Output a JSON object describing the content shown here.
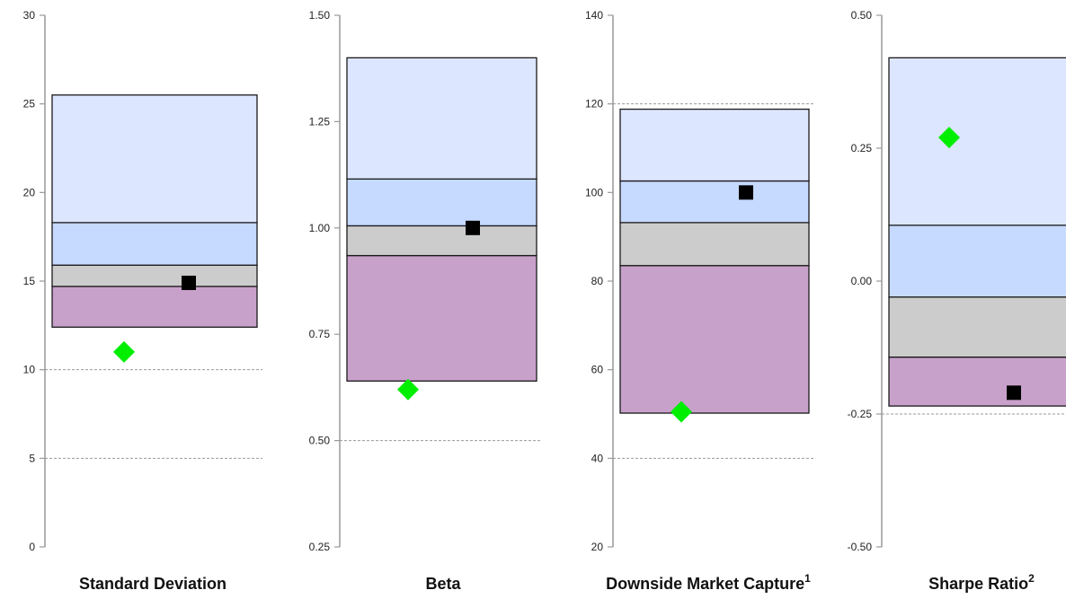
{
  "colors": {
    "band_top": "#dce6ff",
    "band_upper": "#c6d9ff",
    "band_lower": "#cccccc",
    "band_bottom": "#c8a1ca",
    "band_stroke": "#1a1a1a",
    "axis": "#999999",
    "gridline": "#999999",
    "square_marker": "#000000",
    "diamond_marker": "#00ee00"
  },
  "chart_data": [
    {
      "type": "floating-bar",
      "title": "Standard Deviation",
      "title_superscript": "",
      "ylim": [
        0,
        30
      ],
      "yticks": [
        0,
        5,
        10,
        15,
        20,
        25,
        30
      ],
      "ytick_labels": [
        "0",
        "5",
        "10",
        "15",
        "20",
        "25",
        "30"
      ],
      "dashed_gridlines": [
        5,
        10
      ],
      "band_edges": [
        12.4,
        14.7,
        15.9,
        18.3,
        25.5
      ],
      "square_marker": 14.9,
      "diamond_marker": 11.0
    },
    {
      "type": "floating-bar",
      "title": "Beta",
      "title_superscript": "",
      "ylim": [
        0.25,
        1.5
      ],
      "yticks": [
        0.25,
        0.5,
        0.75,
        1.0,
        1.25,
        1.5
      ],
      "ytick_labels": [
        "0.25",
        "0.50",
        "0.75",
        "1.00",
        "1.25",
        "1.50"
      ],
      "dashed_gridlines": [
        0.5
      ],
      "band_edges": [
        0.64,
        0.935,
        1.005,
        1.115,
        1.4
      ],
      "square_marker": 1.0,
      "diamond_marker": 0.62
    },
    {
      "type": "floating-bar",
      "title": "Downside Market Capture",
      "title_superscript": "1",
      "ylim": [
        20,
        140
      ],
      "yticks": [
        20,
        40,
        60,
        80,
        100,
        120,
        140
      ],
      "ytick_labels": [
        "20",
        "40",
        "60",
        "80",
        "100",
        "120",
        "140"
      ],
      "dashed_gridlines": [
        40,
        120
      ],
      "band_edges": [
        50.2,
        83.5,
        93.2,
        102.6,
        118.8
      ],
      "square_marker": 100.0,
      "diamond_marker": 50.5
    },
    {
      "type": "floating-bar",
      "title": "Sharpe Ratio",
      "title_superscript": "2",
      "ylim": [
        -0.5,
        0.5
      ],
      "yticks": [
        -0.5,
        -0.25,
        0.0,
        0.25,
        0.5
      ],
      "ytick_labels": [
        "-0.50",
        "-0.25",
        "0.00",
        "0.25",
        "0.50"
      ],
      "dashed_gridlines": [
        -0.25
      ],
      "band_edges": [
        -0.235,
        -0.143,
        -0.03,
        0.105,
        0.42
      ],
      "square_marker": -0.21,
      "diamond_marker": 0.27
    }
  ]
}
